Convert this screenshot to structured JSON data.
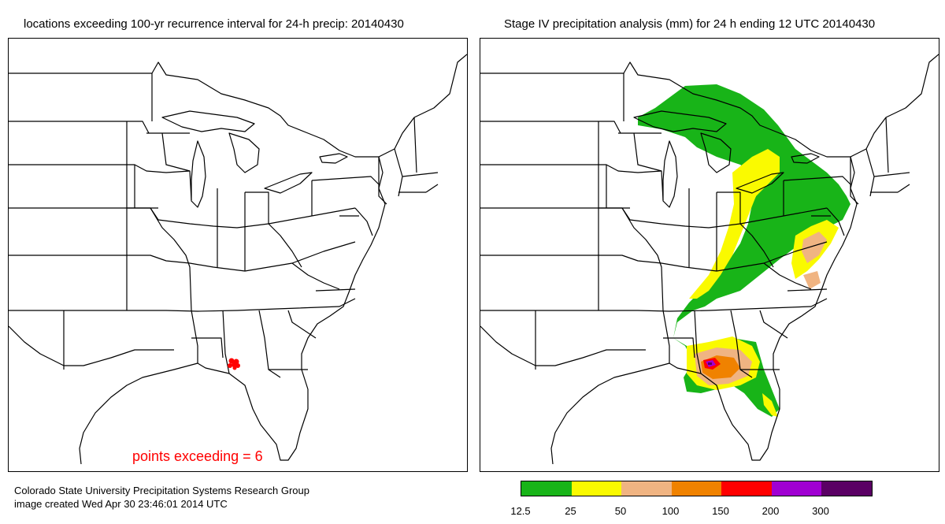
{
  "left_panel": {
    "title": "locations exceeding 100-yr recurrence interval for 24-h precip:  20140430",
    "points_label": "points exceeding =   6",
    "highlight_color": "#ff0000"
  },
  "right_panel": {
    "title": "Stage IV precipitation analysis (mm) for 24 h ending 12 UTC 20140430"
  },
  "credits": {
    "line1": "Colorado State University Precipitation Systems Research Group",
    "line2": "image created Wed Apr 30 23:46:01 2014 UTC"
  },
  "legend": {
    "labels": [
      "12.5",
      "25",
      "50",
      "100",
      "150",
      "200",
      "300"
    ],
    "colors": [
      "#18b418",
      "#fafa00",
      "#f0b482",
      "#f08200",
      "#ff0000",
      "#a000d2",
      "#5a0064"
    ]
  },
  "map": {
    "type": "precipitation map",
    "region": "eastern United States",
    "date": "20140430"
  }
}
